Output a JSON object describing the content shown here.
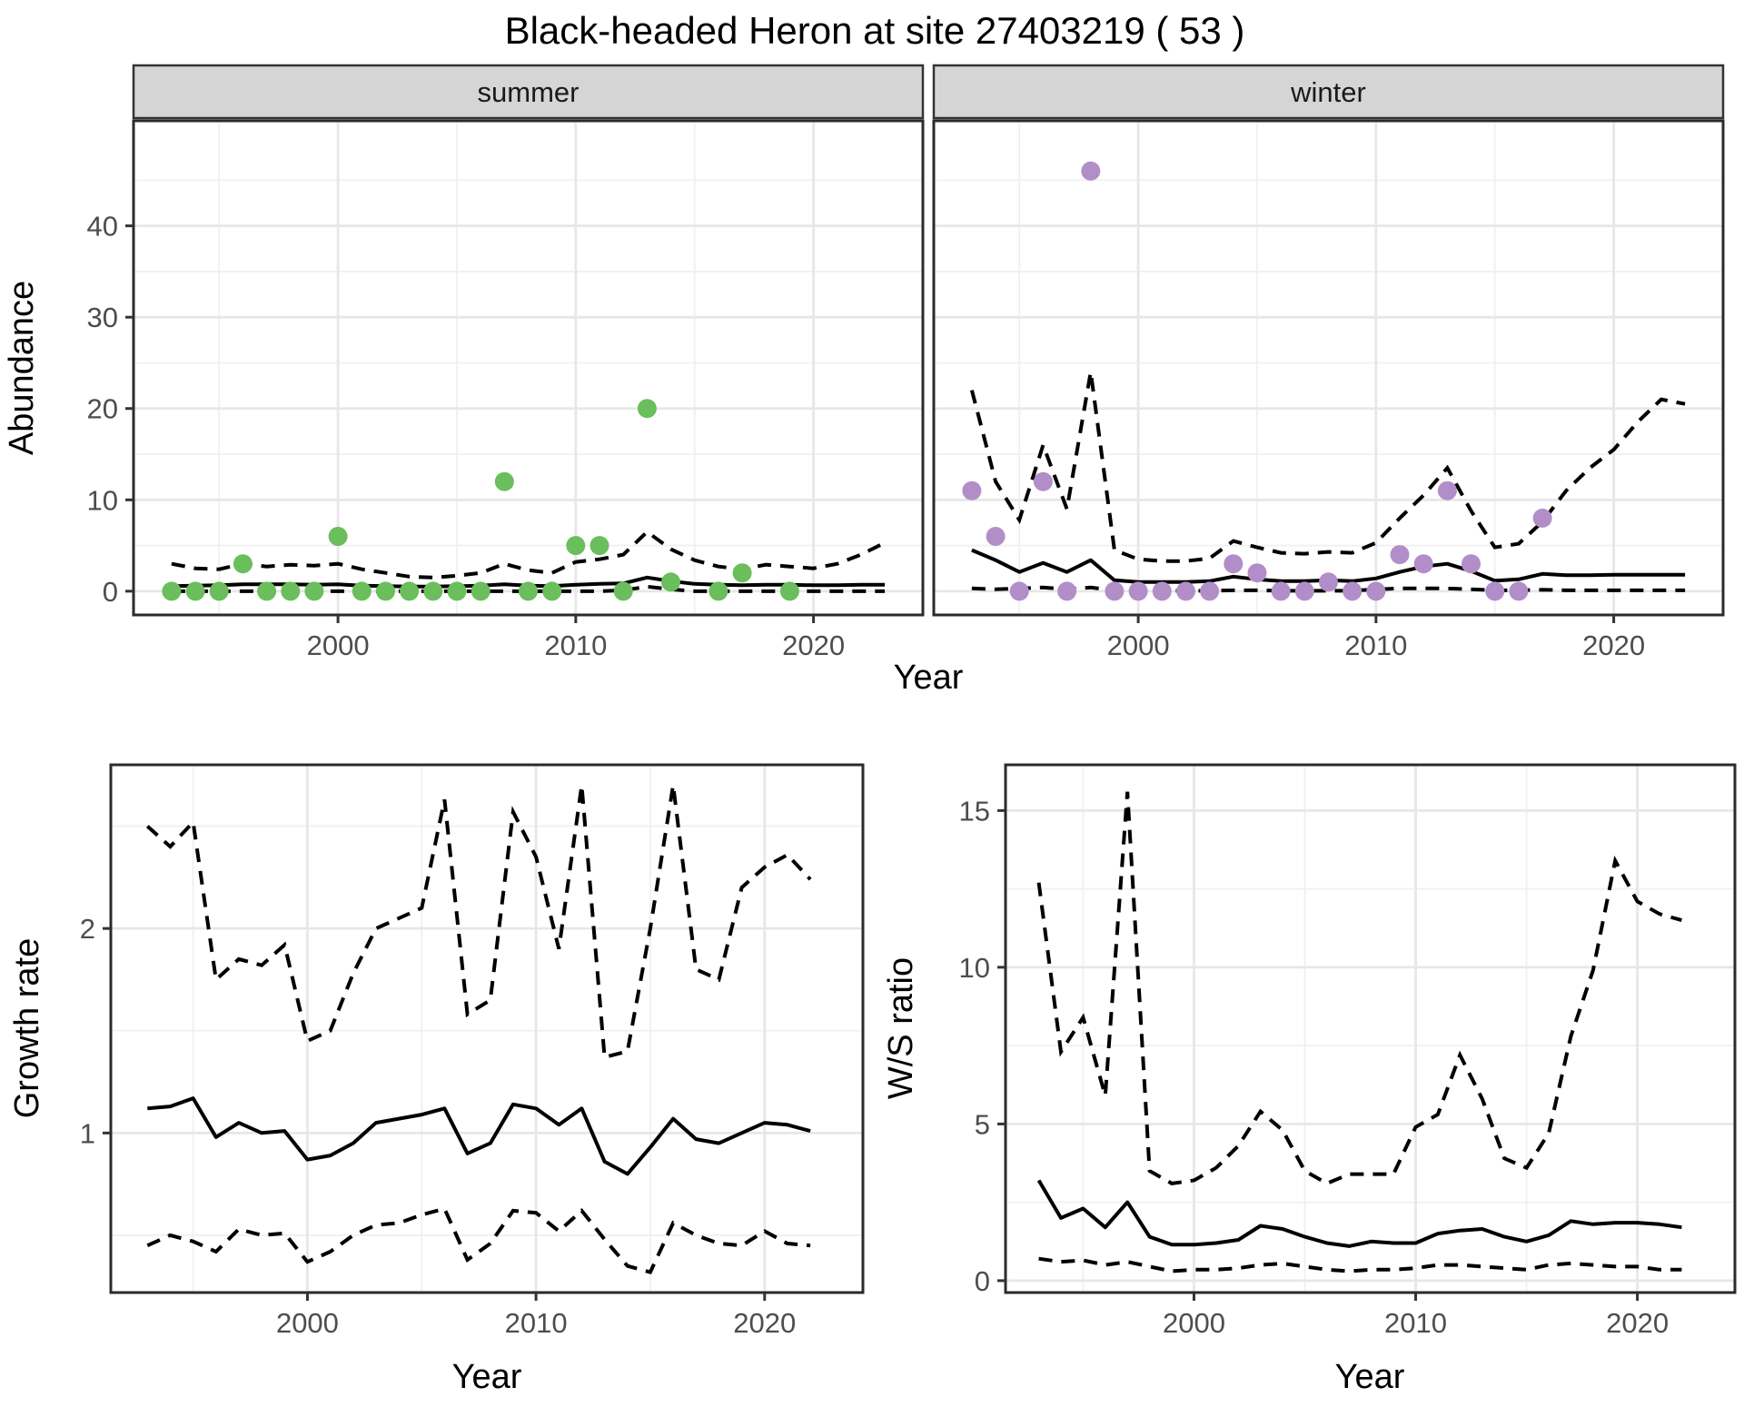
{
  "title": "Black-headed Heron at site 27403219 ( 53 )",
  "colors": {
    "summer_point": "#6ABE5C",
    "winter_point": "#B28EC8",
    "line": "#000000",
    "strip_bg": "#D5D5D5",
    "strip_border": "#333333",
    "panel_border": "#2B2B2B",
    "grid_major": "#E7E7E7",
    "grid_minor": "#F0F0F0",
    "tick_mark": "#333333"
  },
  "chart_data": [
    {
      "id": "abundance",
      "type": "scatter",
      "ylabel": "Abundance",
      "xlabel": "Year",
      "x_ticks": [
        2000,
        2010,
        2020
      ],
      "x_minor": [
        1995,
        2005,
        2015
      ],
      "y_ticks": [
        0,
        10,
        20,
        30,
        40
      ],
      "y_minor": [
        5,
        15,
        25,
        35,
        45
      ],
      "xlim": [
        1991.4,
        2024.6
      ],
      "ylim": [
        -2.6,
        51.5
      ],
      "legend": "none",
      "grid": true,
      "model_years": [
        1993,
        1994,
        1995,
        1996,
        1997,
        1998,
        1999,
        2000,
        2001,
        2002,
        2003,
        2004,
        2005,
        2006,
        2007,
        2008,
        2009,
        2010,
        2011,
        2012,
        2013,
        2014,
        2015,
        2016,
        2017,
        2018,
        2019,
        2020,
        2021,
        2022,
        2023
      ],
      "facets": [
        {
          "label": "summer",
          "point_color_key": "summer_point",
          "points": {
            "years": [
              1993,
              1994,
              1995,
              1996,
              1997,
              1998,
              1999,
              2000,
              2001,
              2002,
              2003,
              2004,
              2005,
              2006,
              2007,
              2008,
              2009,
              2010,
              2011,
              2012,
              2013,
              2014,
              2016,
              2017,
              2019
            ],
            "values": [
              0,
              0,
              0,
              3,
              0,
              0,
              0,
              6,
              0,
              0,
              0,
              0,
              0,
              0,
              12,
              0,
              0,
              5,
              5,
              0,
              20,
              1,
              0,
              2,
              0
            ]
          },
          "median": [
            0.55,
            0.6,
            0.65,
            0.75,
            0.75,
            0.75,
            0.7,
            0.75,
            0.6,
            0.55,
            0.5,
            0.5,
            0.55,
            0.6,
            0.75,
            0.6,
            0.55,
            0.7,
            0.8,
            0.85,
            1.5,
            1.1,
            0.8,
            0.7,
            0.65,
            0.7,
            0.7,
            0.65,
            0.65,
            0.7,
            0.7
          ],
          "upper": [
            3.0,
            2.5,
            2.4,
            3.0,
            2.7,
            2.9,
            2.8,
            3.0,
            2.4,
            2.0,
            1.6,
            1.5,
            1.7,
            2.0,
            3.0,
            2.3,
            2.0,
            3.2,
            3.5,
            4.0,
            6.5,
            4.6,
            3.4,
            2.7,
            2.4,
            2.9,
            2.7,
            2.5,
            3.0,
            4.0,
            5.3
          ],
          "lower": [
            0,
            0,
            0,
            0,
            0,
            0,
            0,
            0,
            0,
            0,
            0,
            0,
            0,
            0,
            0,
            0,
            0,
            0,
            0,
            0.1,
            0.5,
            0.2,
            0,
            0,
            0,
            0,
            0,
            0,
            0,
            0,
            0
          ]
        },
        {
          "label": "winter",
          "point_color_key": "winter_point",
          "points": {
            "years": [
              1993,
              1994,
              1995,
              1996,
              1997,
              1998,
              1999,
              2000,
              2001,
              2002,
              2003,
              2004,
              2005,
              2006,
              2007,
              2008,
              2009,
              2010,
              2011,
              2012,
              2013,
              2014,
              2015,
              2016,
              2017
            ],
            "values": [
              11,
              6,
              0,
              12,
              0,
              46,
              0,
              0,
              0,
              0,
              0,
              3,
              2,
              0,
              0,
              1,
              0,
              0,
              4,
              3,
              11,
              3,
              0,
              0,
              8
            ]
          },
          "median": [
            4.5,
            3.4,
            2.1,
            3.1,
            2.1,
            3.4,
            1.2,
            1.0,
            1.0,
            1.0,
            1.1,
            1.6,
            1.3,
            1.1,
            1.1,
            1.2,
            1.1,
            1.4,
            2.1,
            2.7,
            3.0,
            2.2,
            1.15,
            1.3,
            1.9,
            1.75,
            1.75,
            1.8,
            1.8,
            1.8,
            1.8
          ],
          "upper": [
            22,
            12,
            7.8,
            16,
            9,
            24,
            4.5,
            3.5,
            3.3,
            3.3,
            3.6,
            5.5,
            4.8,
            4.2,
            4.1,
            4.3,
            4.2,
            5.3,
            8,
            10.5,
            13.5,
            8.8,
            4.8,
            5.2,
            7.6,
            11,
            13.5,
            15.5,
            18.5,
            21,
            20.5
          ],
          "lower": [
            0.3,
            0.2,
            0.3,
            0.4,
            0.2,
            0.4,
            0.1,
            0.05,
            0.05,
            0.05,
            0.05,
            0.1,
            0.1,
            0.05,
            0.05,
            0.05,
            0.05,
            0.2,
            0.3,
            0.3,
            0.3,
            0.2,
            0.1,
            0.1,
            0.15,
            0.1,
            0.1,
            0.1,
            0.1,
            0.1,
            0.1
          ]
        }
      ]
    },
    {
      "id": "growth_rate",
      "type": "line",
      "ylabel": "Growth rate",
      "xlabel": "Year",
      "x_ticks": [
        2000,
        2010,
        2020
      ],
      "x_minor": [
        1995,
        2005,
        2015
      ],
      "y_ticks": [
        1,
        2
      ],
      "y_minor": [
        0.5,
        1.5,
        2.5
      ],
      "xlim": [
        1991.4,
        2024.3
      ],
      "ylim": [
        0.22,
        2.8
      ],
      "legend": "none",
      "grid": true,
      "model_years": [
        1993,
        1994,
        1995,
        1996,
        1997,
        1998,
        1999,
        2000,
        2001,
        2002,
        2003,
        2004,
        2005,
        2006,
        2007,
        2008,
        2009,
        2010,
        2011,
        2012,
        2013,
        2014,
        2015,
        2016,
        2017,
        2018,
        2019,
        2020,
        2021,
        2022
      ],
      "median": [
        1.12,
        1.13,
        1.17,
        0.98,
        1.05,
        1.0,
        1.01,
        0.87,
        0.89,
        0.95,
        1.05,
        1.07,
        1.09,
        1.12,
        0.9,
        0.95,
        1.14,
        1.12,
        1.04,
        1.12,
        0.86,
        0.8,
        0.93,
        1.07,
        0.97,
        0.95,
        1.0,
        1.05,
        1.04,
        1.01
      ],
      "upper": [
        2.5,
        2.4,
        2.52,
        1.75,
        1.85,
        1.82,
        1.92,
        1.45,
        1.5,
        1.78,
        2.0,
        2.05,
        2.1,
        2.63,
        1.58,
        1.65,
        2.57,
        2.35,
        1.9,
        2.7,
        1.37,
        1.4,
        2.0,
        2.7,
        1.8,
        1.75,
        2.2,
        2.3,
        2.36,
        2.24
      ],
      "lower": [
        0.45,
        0.5,
        0.47,
        0.42,
        0.53,
        0.5,
        0.51,
        0.37,
        0.42,
        0.5,
        0.55,
        0.56,
        0.6,
        0.63,
        0.38,
        0.46,
        0.62,
        0.61,
        0.52,
        0.62,
        0.48,
        0.35,
        0.32,
        0.56,
        0.5,
        0.46,
        0.45,
        0.52,
        0.46,
        0.45
      ]
    },
    {
      "id": "ws_ratio",
      "type": "line",
      "ylabel": "W/S ratio",
      "xlabel": "Year",
      "x_ticks": [
        2000,
        2010,
        2020
      ],
      "x_minor": [
        1995,
        2005,
        2015
      ],
      "y_ticks": [
        0,
        5,
        10,
        15
      ],
      "y_minor": [
        2.5,
        7.5,
        12.5
      ],
      "xlim": [
        1991.5,
        2024.4
      ],
      "ylim": [
        -0.38,
        16.46
      ],
      "legend": "none",
      "grid": true,
      "model_years": [
        1993,
        1994,
        1995,
        1996,
        1997,
        1998,
        1999,
        2000,
        2001,
        2002,
        2003,
        2004,
        2005,
        2006,
        2007,
        2008,
        2009,
        2010,
        2011,
        2012,
        2013,
        2014,
        2015,
        2016,
        2017,
        2018,
        2019,
        2020,
        2021,
        2022
      ],
      "median": [
        3.2,
        2.0,
        2.3,
        1.7,
        2.5,
        1.4,
        1.15,
        1.15,
        1.2,
        1.3,
        1.75,
        1.65,
        1.4,
        1.2,
        1.1,
        1.25,
        1.2,
        1.2,
        1.5,
        1.6,
        1.65,
        1.4,
        1.25,
        1.45,
        1.9,
        1.8,
        1.85,
        1.85,
        1.8,
        1.7
      ],
      "upper": [
        12.7,
        7.3,
        8.4,
        5.9,
        15.6,
        3.5,
        3.1,
        3.2,
        3.6,
        4.3,
        5.4,
        4.8,
        3.5,
        3.1,
        3.4,
        3.4,
        3.4,
        4.9,
        5.3,
        7.2,
        5.8,
        3.9,
        3.6,
        4.7,
        7.8,
        9.9,
        13.4,
        12.1,
        11.7,
        11.5
      ],
      "lower": [
        0.7,
        0.6,
        0.65,
        0.5,
        0.6,
        0.45,
        0.3,
        0.35,
        0.35,
        0.4,
        0.5,
        0.55,
        0.45,
        0.35,
        0.3,
        0.35,
        0.35,
        0.4,
        0.5,
        0.5,
        0.45,
        0.4,
        0.35,
        0.5,
        0.55,
        0.5,
        0.45,
        0.45,
        0.35,
        0.35
      ]
    }
  ]
}
